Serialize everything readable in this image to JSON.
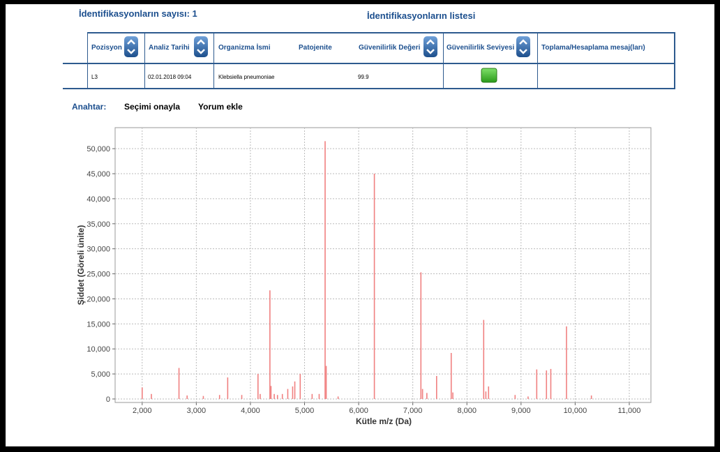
{
  "header": {
    "count_label": "İdentifikasyonların sayısı: 1",
    "list_title": "İdentifikasyonların listesi"
  },
  "table": {
    "columns": [
      "Pozisyon",
      "Analiz Tarihi",
      "Organizma İsmi",
      "Patojenite",
      "Güvenilirlik Değeri",
      "Güvenilirlik Seviyesi",
      "Toplama/Hesaplama mesaj(ları)"
    ],
    "row": {
      "position": "L3",
      "date": "02.01.2018 09:04",
      "organism": "Klebsiella pneumoniae",
      "confidence_value": "99.9"
    }
  },
  "key": {
    "label": "Anahtar:",
    "actions": [
      "Seçimi onayla",
      "Yorum ekle"
    ]
  },
  "chart_data": {
    "type": "stem",
    "x_label": "Kütle m/z (Da)",
    "y_label": "Şiddet (Göreli ünite)",
    "xlim": [
      1500,
      11400
    ],
    "ylim": [
      -700,
      54200
    ],
    "xticks": [
      {
        "value": 2000,
        "label": "2,000"
      },
      {
        "value": 3000,
        "label": "3,000"
      },
      {
        "value": 4000,
        "label": "4,000"
      },
      {
        "value": 5000,
        "label": "5,000"
      },
      {
        "value": 6000,
        "label": "6,000"
      },
      {
        "value": 7000,
        "label": "7,000"
      },
      {
        "value": 8000,
        "label": "8,000"
      },
      {
        "value": 9000,
        "label": "9,000"
      },
      {
        "value": 10000,
        "label": "10,000"
      },
      {
        "value": 11000,
        "label": "11,000"
      }
    ],
    "yticks": [
      0,
      {
        "value": 5000,
        "label": "5,000"
      },
      {
        "value": 10000,
        "label": "10,000"
      },
      {
        "value": 15000,
        "label": "15,000"
      },
      {
        "value": 20000,
        "label": "20,000"
      },
      {
        "value": 25000,
        "label": "25,000"
      },
      {
        "value": 30000,
        "label": "30,000"
      },
      {
        "value": 35000,
        "label": "35,000"
      },
      {
        "value": 40000,
        "label": "40,000"
      },
      {
        "value": 45000,
        "label": "45,000"
      },
      {
        "value": 50000,
        "label": "50,000"
      }
    ],
    "grid": true,
    "color": "#f08080",
    "x": [
      2000,
      2170,
      2680,
      2830,
      3130,
      3430,
      3580,
      3840,
      4140,
      4180,
      4360,
      4380,
      4440,
      4500,
      4590,
      4690,
      4780,
      4820,
      4920,
      5140,
      5270,
      5380,
      5400,
      5620,
      6290,
      7150,
      7180,
      7260,
      7440,
      7710,
      7740,
      8310,
      8350,
      8400,
      8890,
      9130,
      9290,
      9470,
      9550,
      9840,
      10300
    ],
    "values": [
      2300,
      1000,
      6200,
      700,
      600,
      800,
      4300,
      800,
      5000,
      1000,
      21700,
      2600,
      1000,
      800,
      1000,
      2000,
      2500,
      3500,
      5000,
      1000,
      1000,
      51500,
      6600,
      500,
      45000,
      25300,
      2000,
      1200,
      4600,
      9200,
      1300,
      15800,
      1500,
      2500,
      800,
      500,
      5900,
      5700,
      6000,
      14500,
      700
    ]
  }
}
